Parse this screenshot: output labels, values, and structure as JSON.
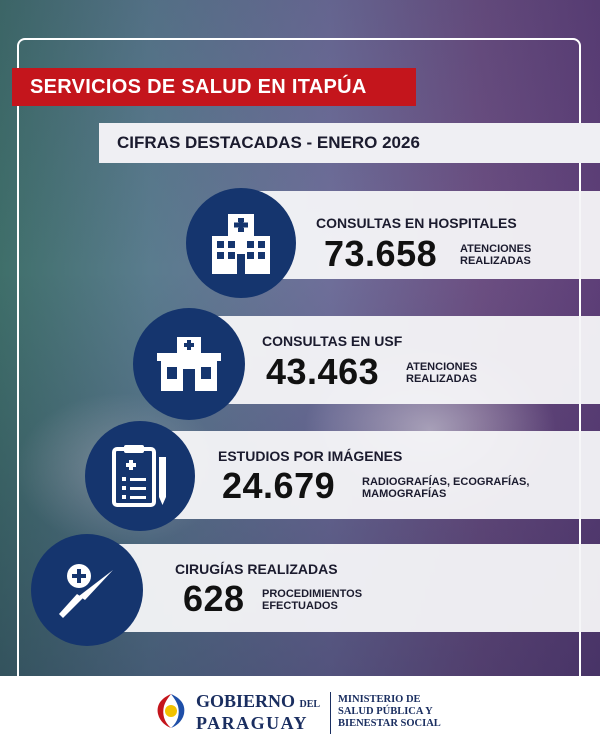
{
  "header": {
    "title": "SERVICIOS DE SALUD EN ITAPÚA",
    "subtitle": "CIFRAS DESTACADAS - ENERO 2026"
  },
  "stats": [
    {
      "label": "CONSULTAS EN HOSPITALES",
      "value": "73.658",
      "desc1": "ATENCIONES",
      "desc2": "REALIZADAS",
      "icon": "hospital-icon"
    },
    {
      "label": "CONSULTAS EN USF",
      "value": "43.463",
      "desc1": "ATENCIONES",
      "desc2": "REALIZADAS",
      "icon": "health-unit-icon"
    },
    {
      "label": "ESTUDIOS POR IMÁGENES",
      "value": "24.679",
      "desc1": "RADIOGRAFÍAS, ECOGRAFÍAS,",
      "desc2": "MAMOGRAFÍAS",
      "icon": "clipboard-icon"
    },
    {
      "label": "CIRUGÍAS REALIZADAS",
      "value": "628",
      "desc1": "PROCEDIMIENTOS",
      "desc2": "EFECTUADOS",
      "icon": "scalpel-icon"
    }
  ],
  "footer": {
    "gov_line1": "GOBIERNO",
    "gov_del": "DEL",
    "gov_line2": "PARAGUAY",
    "ministry_line1": "MINISTERIO DE",
    "ministry_line2": "SALUD PÚBLICA Y",
    "ministry_line3": "BIENESTAR SOCIAL"
  },
  "colors": {
    "accent_red": "#c4151c",
    "navy": "#15356e"
  }
}
